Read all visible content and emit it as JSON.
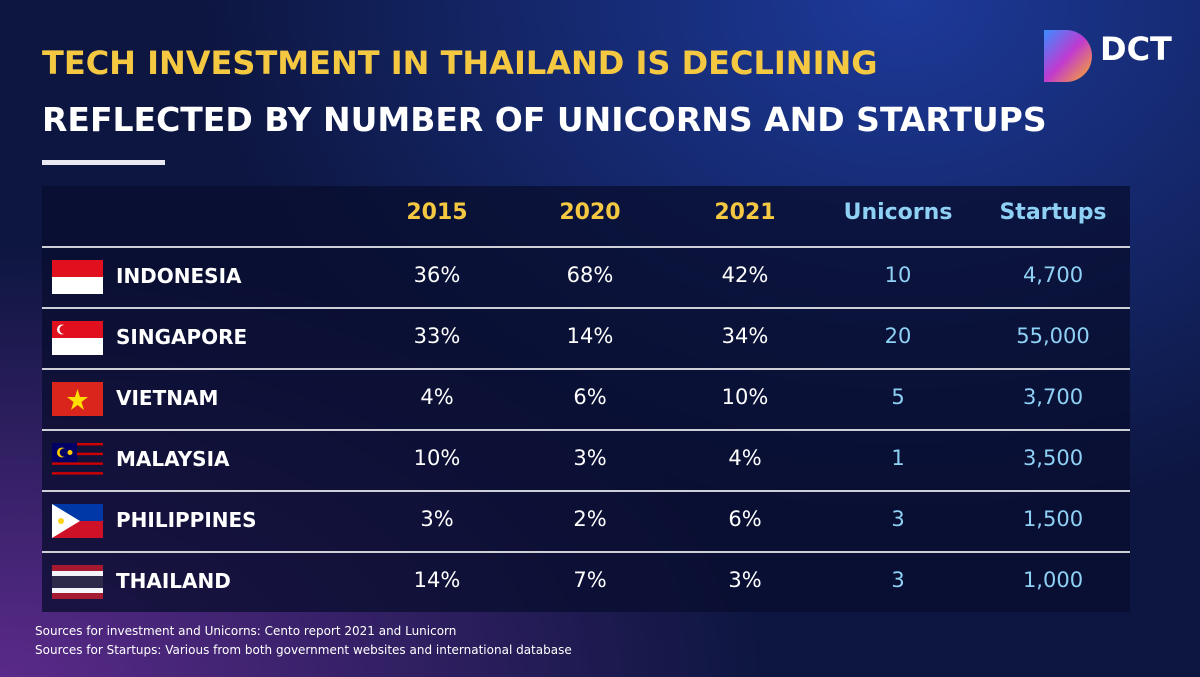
{
  "header": {
    "title": "TECH INVESTMENT IN THAILAND IS DECLINING",
    "subtitle": "REFLECTED BY NUMBER OF UNICORNS AND STARTUPS",
    "logo": "DCT"
  },
  "table": {
    "columns": [
      "2015",
      "2020",
      "2021",
      "Unicorns",
      "Startups"
    ],
    "rows": [
      [
        "INDONESIA",
        "36%",
        "68%",
        "42%",
        "10",
        "4,700"
      ],
      [
        "SINGAPORE",
        "33%",
        "14%",
        "34%",
        "20",
        "55,000"
      ],
      [
        "VIETNAM",
        "4%",
        "6%",
        "10%",
        "5",
        "3,700"
      ],
      [
        "MALAYSIA",
        "10%",
        "3%",
        "4%",
        "1",
        "3,500"
      ],
      [
        "PHILIPPINES",
        "3%",
        "2%",
        "6%",
        "3",
        "1,500"
      ],
      [
        "THAILAND",
        "14%",
        "7%",
        "3%",
        "3",
        "1,000"
      ]
    ]
  },
  "sources": [
    "Sources for investment and Unicorns: Cento report 2021 and Lunicorn",
    "Sources for Startups: Various from both government websites and international database"
  ]
}
